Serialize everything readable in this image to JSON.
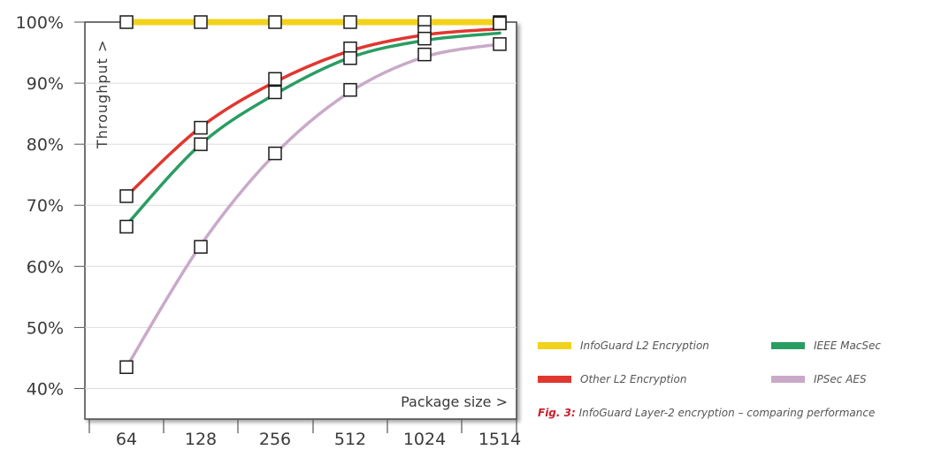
{
  "chart_data": {
    "type": "line",
    "title": "",
    "xlabel": "Package size >",
    "ylabel": "Throughput >",
    "categories": [
      "64",
      "128",
      "256",
      "512",
      "1024",
      "1514"
    ],
    "ylim": [
      35,
      100
    ],
    "yticks": [
      40,
      50,
      60,
      70,
      80,
      90,
      100
    ],
    "ytick_labels": [
      "40%",
      "50%",
      "60%",
      "70%",
      "80%",
      "90%",
      "100%"
    ],
    "grid": true,
    "legend_position": "right",
    "series": [
      {
        "name": "InfoGuard L2 Encryption",
        "color": "#f2d21b",
        "values": [
          100,
          100,
          100,
          100,
          100,
          100
        ],
        "fit": [
          100,
          100,
          100,
          100,
          100,
          100
        ]
      },
      {
        "name": "Other L2 Encryption",
        "color": "#e0372f",
        "values": [
          71.5,
          82.7,
          90.7,
          95.7,
          98.4,
          99.8
        ],
        "fit": [
          71.5,
          82.8,
          90.2,
          95.3,
          97.9,
          98.9
        ]
      },
      {
        "name": "IEEE MacSec",
        "color": "#2a9d62",
        "values": [
          66.5,
          80,
          88.5,
          94.1,
          97.3,
          99.8
        ],
        "fit": [
          66.8,
          80,
          88.2,
          94.2,
          97.0,
          98.2
        ]
      },
      {
        "name": "IPSec AES",
        "color": "#c9a9c8",
        "values": [
          43.5,
          63.2,
          78.5,
          88.9,
          94.7,
          96.4
        ],
        "fit": [
          43.5,
          63.5,
          78.4,
          88.6,
          94.3,
          96.4
        ]
      }
    ]
  },
  "caption": {
    "label": "Fig. 3:",
    "text": " InfoGuard Layer-2 encryption – comparing performance"
  }
}
